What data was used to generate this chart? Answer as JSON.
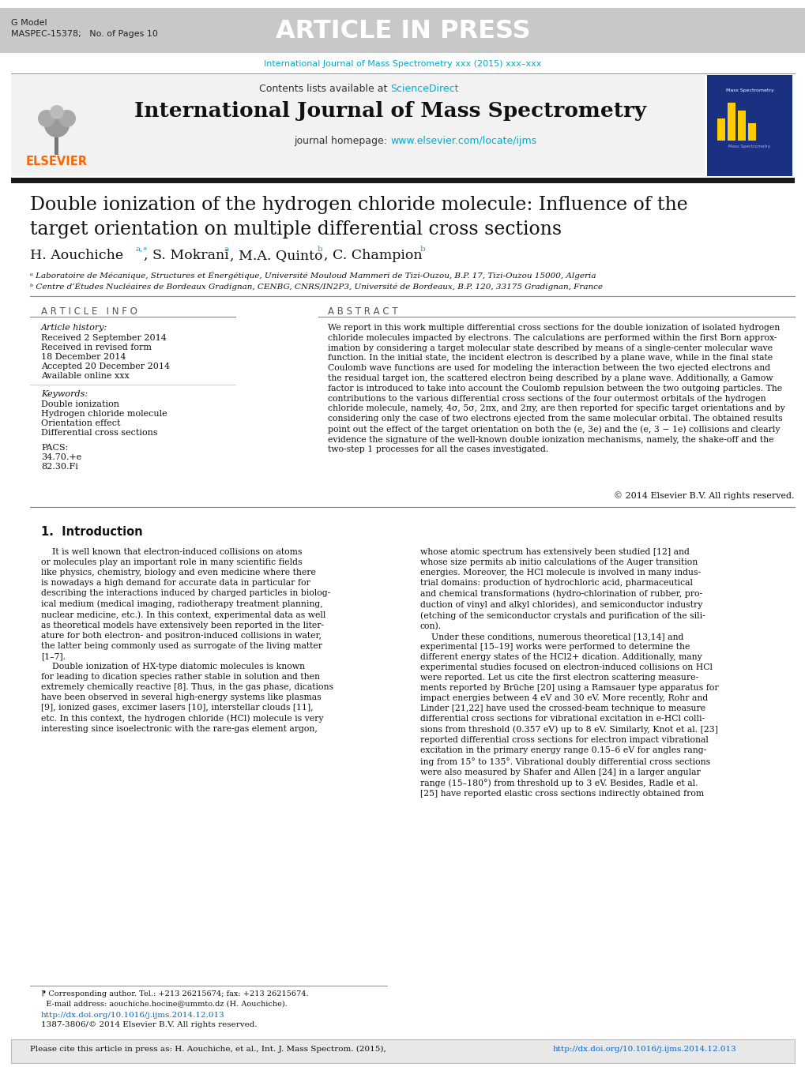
{
  "page_bg": "#ffffff",
  "header_bar_bg": "#c8c8c8",
  "header_bar_text": "ARTICLE IN PRESS",
  "header_bar_text_color": "#ffffff",
  "gmodel_text": "G Model",
  "maspec_text": "MASPEC-15378;   No. of Pages 10",
  "journal_url_text": "International Journal of Mass Spectrometry xxx (2015) xxx–xxx",
  "journal_url_color": "#00aacc",
  "contents_text": "Contents lists available at ",
  "sciencedirect_text": "ScienceDirect",
  "sciencedirect_color": "#00aacc",
  "journal_title": "International Journal of Mass Spectrometry",
  "journal_homepage_text": "journal homepage: ",
  "journal_homepage_url": "www.elsevier.com/locate/ijms",
  "journal_homepage_url_color": "#00aacc",
  "article_title": "Double ionization of the hydrogen chloride molecule: Influence of the\ntarget orientation on multiple differential cross sections",
  "affiliation_a": "ᵃ Laboratoire de Mécanique, Structures et Énergétique, Université Mouloud Mammeri de Tizi-Ouzou, B.P. 17, Tizi-Ouzou 15000, Algeria",
  "affiliation_b": "ᵇ Centre d’Études Nucléaires de Bordeaux Gradignan, CENBG, CNRS/IN2P3, Université de Bordeaux, B.P. 120, 33175 Gradignan, France",
  "article_info_header": "A R T I C L E   I N F O",
  "abstract_header": "A B S T R A C T",
  "article_history_label": "Article history:",
  "received_text": "Received 2 September 2014",
  "revised_text": "Received in revised form",
  "revised_date": "18 December 2014",
  "accepted_text": "Accepted 20 December 2014",
  "available_text": "Available online xxx",
  "keywords_label": "Keywords:",
  "keyword1": "Double ionization",
  "keyword2": "Hydrogen chloride molecule",
  "keyword3": "Orientation effect",
  "keyword4": "Differential cross sections",
  "pacs_label": "PACS:",
  "pacs1": "34.70.+e",
  "pacs2": "82.30.Fi",
  "abstract_text": "We report in this work multiple differential cross sections for the double ionization of isolated hydrogen\nchloride molecules impacted by electrons. The calculations are performed within the first Born approx-\nimation by considering a target molecular state described by means of a single-center molecular wave\nfunction. In the initial state, the incident electron is described by a plane wave, while in the final state\nCoulomb wave functions are used for modeling the interaction between the two ejected electrons and\nthe residual target ion, the scattered electron being described by a plane wave. Additionally, a Gamow\nfactor is introduced to take into account the Coulomb repulsion between the two outgoing particles. The\ncontributions to the various differential cross sections of the four outermost orbitals of the hydrogen\nchloride molecule, namely, 4σ, 5σ, 2πx, and 2πy, are then reported for specific target orientations and by\nconsidering only the case of two electrons ejected from the same molecular orbital. The obtained results\npoint out the effect of the target orientation on both the (e, 3e) and the (e, 3 − 1e) collisions and clearly\nevidence the signature of the well-known double ionization mechanisms, namely, the shake-off and the\ntwo-step 1 processes for all the cases investigated.",
  "copyright_text": "© 2014 Elsevier B.V. All rights reserved.",
  "intro_header": "1.  Introduction",
  "intro_text1": "    It is well known that electron-induced collisions on atoms\nor molecules play an important role in many scientific fields\nlike physics, chemistry, biology and even medicine where there\nis nowadays a high demand for accurate data in particular for\ndescribing the interactions induced by charged particles in biolog-\nical medium (medical imaging, radiotherapy treatment planning,\nnuclear medicine, etc.). In this context, experimental data as well\nas theoretical models have extensively been reported in the liter-\nature for both electron- and positron-induced collisions in water,\nthe latter being commonly used as surrogate of the living matter\n[1–7].",
  "intro_text2": "    Double ionization of HX-type diatomic molecules is known\nfor leading to dication species rather stable in solution and then\nextremely chemically reactive [8]. Thus, in the gas phase, dications\nhave been observed in several high-energy systems like plasmas\n[9], ionized gases, excimer lasers [10], interstellar clouds [11],\netc. In this context, the hydrogen chloride (HCl) molecule is very\ninteresting since isoelectronic with the rare-gas element argon,",
  "intro_text3": "whose atomic spectrum has extensively been studied [12] and\nwhose size permits ab initio calculations of the Auger transition\nenergies. Moreover, the HCl molecule is involved in many indus-\ntrial domains: production of hydrochloric acid, pharmaceutical\nand chemical transformations (hydro-chlorination of rubber, pro-\nduction of vinyl and alkyl chlorides), and semiconductor industry\n(etching of the semiconductor crystals and purification of the sili-\ncon).",
  "intro_text4": "    Under these conditions, numerous theoretical [13,14] and\nexperimental [15–19] works were performed to determine the\ndifferent energy states of the HCl2+ dication. Additionally, many\nexperimental studies focused on electron-induced collisions on HCl\nwere reported. Let us cite the first electron scattering measure-\nments reported by Brüche [20] using a Ramsauer type apparatus for\nimpact energies between 4 eV and 30 eV. More recently, Rohr and\nLinder [21,22] have used the crossed-beam technique to measure\ndifferential cross sections for vibrational excitation in e-HCl colli-\nsions from threshold (0.357 eV) up to 8 eV. Similarly, Knot et al. [23]\nreported differential cross sections for electron impact vibrational\nexcitation in the primary energy range 0.15–6 eV for angles rang-\ning from 15° to 135°. Vibrational doubly differential cross sections\nwere also measured by Shafer and Allen [24] in a larger angular\nrange (15–180°) from threshold up to 3 eV. Besides, Radle et al.\n[25] have reported elastic cross sections indirectly obtained from",
  "footer_corr": "⁋ Corresponding author. Tel.: +213 26215674; fax: +213 26215674.",
  "footer_email": "  E-mail address: aouchiche.hocine@ummto.dz (H. Aouchiche).",
  "footer_doi": "http://dx.doi.org/10.1016/j.ijms.2014.12.013",
  "footer_issn": "1387-3806/© 2014 Elsevier B.V. All rights reserved.",
  "cite_bar_text": "Please cite this article in press as: H. Aouchiche, et al., Int. J. Mass Spectrom. (2015), ",
  "cite_bar_url": "http://dx.doi.org/10.1016/j.ijms.2014.12.013",
  "cite_bar_url_color": "#0066cc",
  "cite_bar_bg": "#e8e8e8",
  "elsevier_orange": "#FF6600"
}
